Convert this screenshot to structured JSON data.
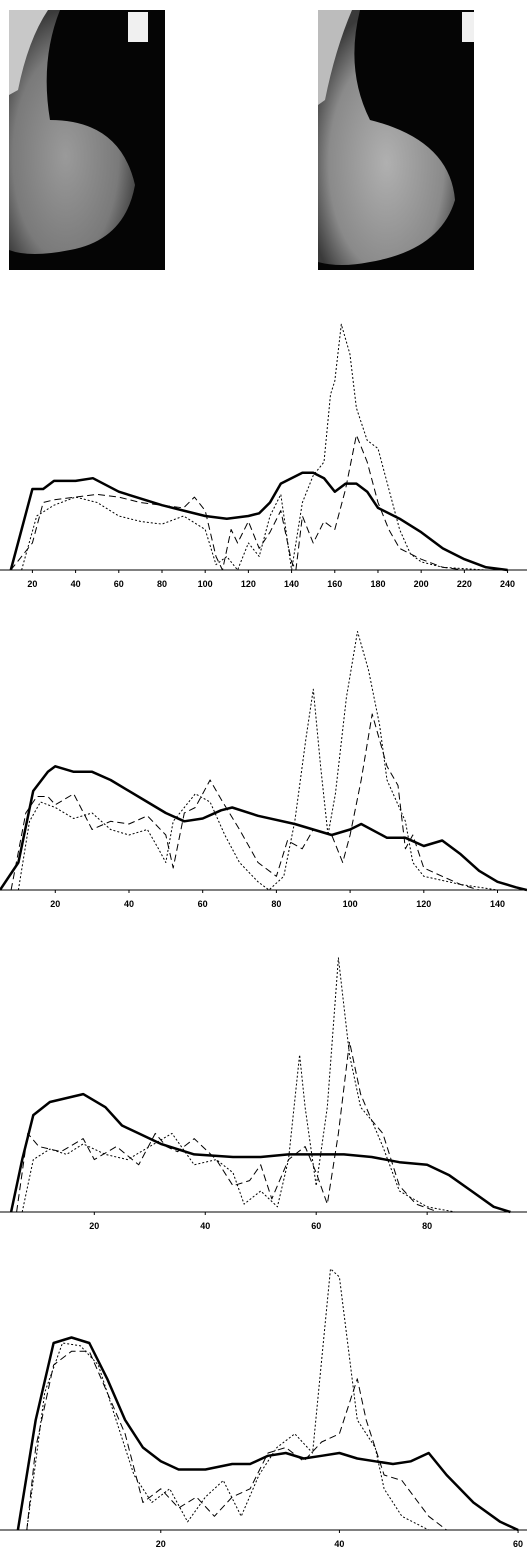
{
  "chart_data": [
    {
      "type": "line",
      "xlim": [
        5,
        249
      ],
      "ylim": [
        0,
        100
      ],
      "xticks": [
        20,
        40,
        60,
        80,
        100,
        120,
        140,
        160,
        180,
        200,
        220,
        240
      ],
      "series": [
        {
          "color": "#000000",
          "style": "solid",
          "width": 2.5,
          "x": [
            10,
            15,
            20,
            25,
            30,
            40,
            48,
            60,
            80,
            90,
            100,
            110,
            120,
            125,
            130,
            135,
            145,
            150,
            155,
            160,
            165,
            170,
            175,
            180,
            190,
            200,
            210,
            220,
            230,
            240
          ],
          "values": [
            0,
            15,
            30,
            30,
            33,
            33,
            34,
            29,
            24,
            22,
            20,
            19,
            20,
            21,
            25,
            32,
            36,
            36,
            34,
            29,
            32,
            32,
            29,
            23,
            19,
            14,
            8,
            4,
            1,
            0
          ]
        },
        {
          "color": "#000000",
          "style": "dashed",
          "width": 1,
          "x": [
            10,
            20,
            25,
            30,
            40,
            50,
            60,
            70,
            80,
            90,
            95,
            100,
            105,
            108,
            112,
            115,
            120,
            125,
            130,
            135,
            140,
            142,
            145,
            150,
            155,
            160,
            165,
            170,
            175,
            180,
            185,
            190,
            200,
            210,
            220
          ],
          "values": [
            0,
            10,
            25,
            26,
            27,
            28,
            27,
            25,
            24,
            23,
            27,
            22,
            5,
            0,
            15,
            10,
            18,
            8,
            14,
            22,
            3,
            0,
            20,
            10,
            18,
            15,
            30,
            50,
            40,
            25,
            15,
            8,
            4,
            1,
            0
          ]
        },
        {
          "color": "#000000",
          "style": "dotted",
          "width": 1,
          "x": [
            15,
            22,
            30,
            40,
            50,
            60,
            70,
            80,
            90,
            100,
            105,
            110,
            115,
            120,
            125,
            130,
            135,
            140,
            145,
            150,
            155,
            158,
            160,
            163,
            167,
            170,
            175,
            180,
            185,
            190,
            195,
            200,
            210,
            230
          ],
          "values": [
            0,
            20,
            24,
            27,
            25,
            20,
            18,
            17,
            20,
            15,
            2,
            5,
            0,
            10,
            5,
            20,
            28,
            0,
            25,
            35,
            40,
            65,
            70,
            91,
            80,
            60,
            48,
            45,
            30,
            15,
            6,
            3,
            1,
            0
          ]
        }
      ]
    },
    {
      "type": "line",
      "xlim": [
        5,
        148
      ],
      "ylim": [
        0,
        100
      ],
      "xticks": [
        20,
        40,
        60,
        80,
        100,
        120,
        140
      ],
      "series": [
        {
          "color": "#000000",
          "style": "solid",
          "width": 2.5,
          "x": [
            5,
            10,
            14,
            18,
            20,
            25,
            30,
            35,
            45,
            50,
            55,
            60,
            65,
            68,
            75,
            85,
            95,
            100,
            103,
            110,
            115,
            120,
            125,
            130,
            135,
            140,
            145,
            148
          ],
          "values": [
            0,
            10,
            36,
            43,
            45,
            43,
            43,
            40,
            32,
            28,
            25,
            26,
            29,
            30,
            27,
            24,
            20,
            22,
            24,
            19,
            19,
            16,
            18,
            13,
            7,
            3,
            1,
            0
          ]
        },
        {
          "color": "#000000",
          "style": "dashed",
          "width": 1,
          "x": [
            8,
            12,
            15,
            18,
            20,
            25,
            30,
            35,
            40,
            45,
            50,
            52,
            55,
            58,
            62,
            65,
            70,
            75,
            80,
            83,
            87,
            90,
            95,
            98,
            100,
            103,
            106,
            110,
            113,
            115,
            117,
            120,
            125,
            130,
            135
          ],
          "values": [
            0,
            28,
            34,
            34,
            31,
            35,
            22,
            25,
            24,
            27,
            20,
            8,
            28,
            30,
            40,
            33,
            22,
            10,
            5,
            18,
            15,
            22,
            20,
            10,
            20,
            40,
            64,
            45,
            38,
            15,
            20,
            8,
            5,
            2,
            0
          ]
        },
        {
          "color": "#000000",
          "style": "dotted",
          "width": 1,
          "x": [
            10,
            13,
            16,
            20,
            25,
            30,
            35,
            40,
            45,
            48,
            50,
            52,
            55,
            58,
            62,
            66,
            70,
            75,
            78,
            82,
            85,
            88,
            90,
            92,
            94,
            96,
            99,
            102,
            105,
            108,
            110,
            115,
            117,
            120,
            130,
            140
          ],
          "values": [
            0,
            25,
            32,
            30,
            26,
            28,
            22,
            20,
            22,
            15,
            10,
            25,
            30,
            35,
            32,
            20,
            10,
            3,
            0,
            5,
            25,
            55,
            73,
            45,
            20,
            35,
            70,
            94,
            80,
            60,
            40,
            25,
            10,
            5,
            2,
            0
          ]
        }
      ]
    },
    {
      "type": "line",
      "xlim": [
        3,
        98
      ],
      "ylim": [
        0,
        100
      ],
      "xticks": [
        20,
        40,
        60,
        80
      ],
      "series": [
        {
          "color": "#000000",
          "style": "solid",
          "width": 2.5,
          "x": [
            5,
            7,
            9,
            12,
            18,
            22,
            25,
            28,
            32,
            38,
            45,
            50,
            55,
            60,
            65,
            70,
            75,
            80,
            84,
            88,
            92,
            95
          ],
          "values": [
            0,
            20,
            37,
            42,
            45,
            40,
            33,
            30,
            26,
            22,
            21,
            21,
            22,
            22,
            22,
            21,
            19,
            18,
            14,
            8,
            2,
            0
          ]
        },
        {
          "color": "#000000",
          "style": "dashed",
          "width": 1,
          "x": [
            6,
            8,
            10,
            14,
            18,
            20,
            24,
            28,
            31,
            33,
            35,
            38,
            42,
            45,
            48,
            50,
            52,
            55,
            58,
            60,
            62,
            64,
            66,
            68,
            70,
            72,
            75,
            78,
            82
          ],
          "values": [
            0,
            30,
            25,
            23,
            28,
            20,
            25,
            18,
            30,
            25,
            23,
            28,
            20,
            10,
            12,
            18,
            5,
            20,
            25,
            15,
            3,
            30,
            65,
            45,
            35,
            30,
            10,
            3,
            0
          ]
        },
        {
          "color": "#000000",
          "style": "dotted",
          "width": 1,
          "x": [
            7,
            9,
            12,
            15,
            18,
            22,
            26,
            30,
            34,
            38,
            42,
            45,
            47,
            50,
            53,
            55,
            57,
            58,
            60,
            62,
            64,
            66,
            68,
            70,
            72,
            75,
            80,
            85
          ],
          "values": [
            0,
            20,
            24,
            22,
            26,
            22,
            20,
            25,
            30,
            18,
            20,
            15,
            3,
            8,
            2,
            20,
            60,
            40,
            10,
            40,
            97,
            60,
            40,
            35,
            25,
            8,
            2,
            0
          ]
        }
      ]
    },
    {
      "type": "line",
      "xlim": [
        2,
        61
      ],
      "ylim": [
        0,
        100
      ],
      "xticks": [
        20,
        40,
        60
      ],
      "series": [
        {
          "color": "#000000",
          "style": "solid",
          "width": 2.5,
          "x": [
            4,
            6,
            8,
            10,
            12,
            14,
            16,
            18,
            20,
            22,
            25,
            28,
            30,
            32,
            34,
            36,
            38,
            40,
            42,
            44,
            46,
            48,
            50,
            52,
            55,
            58,
            60
          ],
          "values": [
            0,
            40,
            68,
            70,
            68,
            55,
            40,
            30,
            25,
            22,
            22,
            24,
            24,
            27,
            28,
            26,
            27,
            28,
            26,
            25,
            24,
            25,
            28,
            20,
            10,
            3,
            0
          ]
        },
        {
          "color": "#000000",
          "style": "dashed",
          "width": 1,
          "x": [
            5,
            6,
            8,
            10,
            12,
            14,
            16,
            18,
            20,
            22,
            24,
            26,
            28,
            30,
            32,
            34,
            36,
            38,
            40,
            42,
            43,
            45,
            47,
            50,
            52
          ],
          "values": [
            0,
            30,
            60,
            65,
            65,
            50,
            35,
            10,
            15,
            8,
            12,
            5,
            12,
            15,
            28,
            30,
            25,
            32,
            35,
            55,
            40,
            20,
            18,
            5,
            0
          ]
        },
        {
          "color": "#000000",
          "style": "dotted",
          "width": 1,
          "x": [
            5,
            7,
            9,
            11,
            13,
            15,
            17,
            19,
            21,
            23,
            25,
            27,
            29,
            31,
            33,
            35,
            37,
            39,
            40,
            42,
            44,
            45,
            47,
            50
          ],
          "values": [
            0,
            50,
            68,
            67,
            60,
            40,
            20,
            10,
            15,
            3,
            12,
            18,
            5,
            20,
            30,
            35,
            28,
            95,
            92,
            40,
            30,
            15,
            5,
            0
          ]
        }
      ]
    }
  ]
}
